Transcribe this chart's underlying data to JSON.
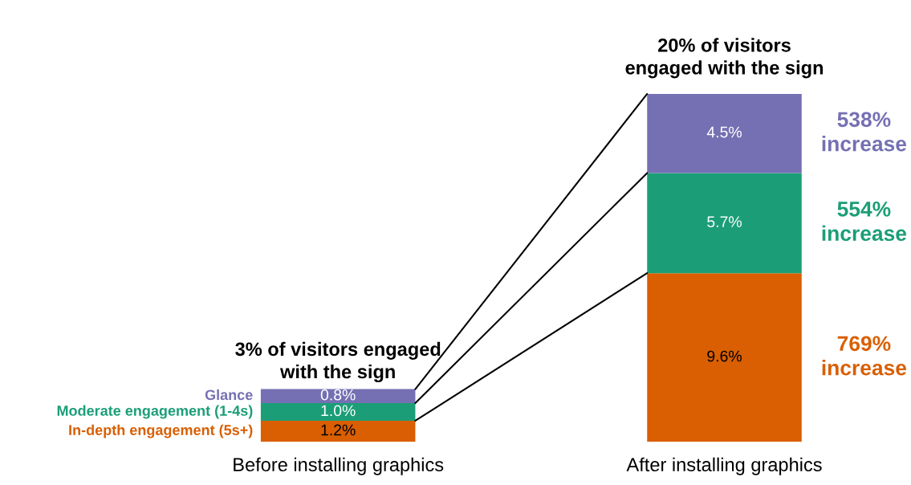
{
  "chart_data": {
    "type": "bar",
    "stacked": true,
    "categories": [
      "Before installing graphics",
      "After installing graphics"
    ],
    "series": [
      {
        "name": "In-depth engagement (5s+)",
        "color": "#d95f02",
        "values": [
          1.2,
          9.6
        ],
        "value_labels": [
          "1.2%",
          "9.6%"
        ]
      },
      {
        "name": "Moderate engagement (1-4s)",
        "color": "#1b9e77",
        "values": [
          1.0,
          5.7
        ],
        "value_labels": [
          "1.0%",
          "5.7%"
        ]
      },
      {
        "name": "Glance",
        "color": "#7570b3",
        "values": [
          0.8,
          4.5
        ],
        "value_labels": [
          "0.8%",
          "4.5%"
        ]
      }
    ],
    "annotations": [
      {
        "text": "3% of visitors engaged with the sign",
        "x": "Before installing graphics",
        "y": 3.0
      },
      {
        "text": "20% of visitors engaged with the sign",
        "x": "After installing graphics",
        "y": 19.8
      },
      "538% increase",
      "554% increase",
      "769% increase"
    ],
    "legend": false,
    "grid": false
  }
}
